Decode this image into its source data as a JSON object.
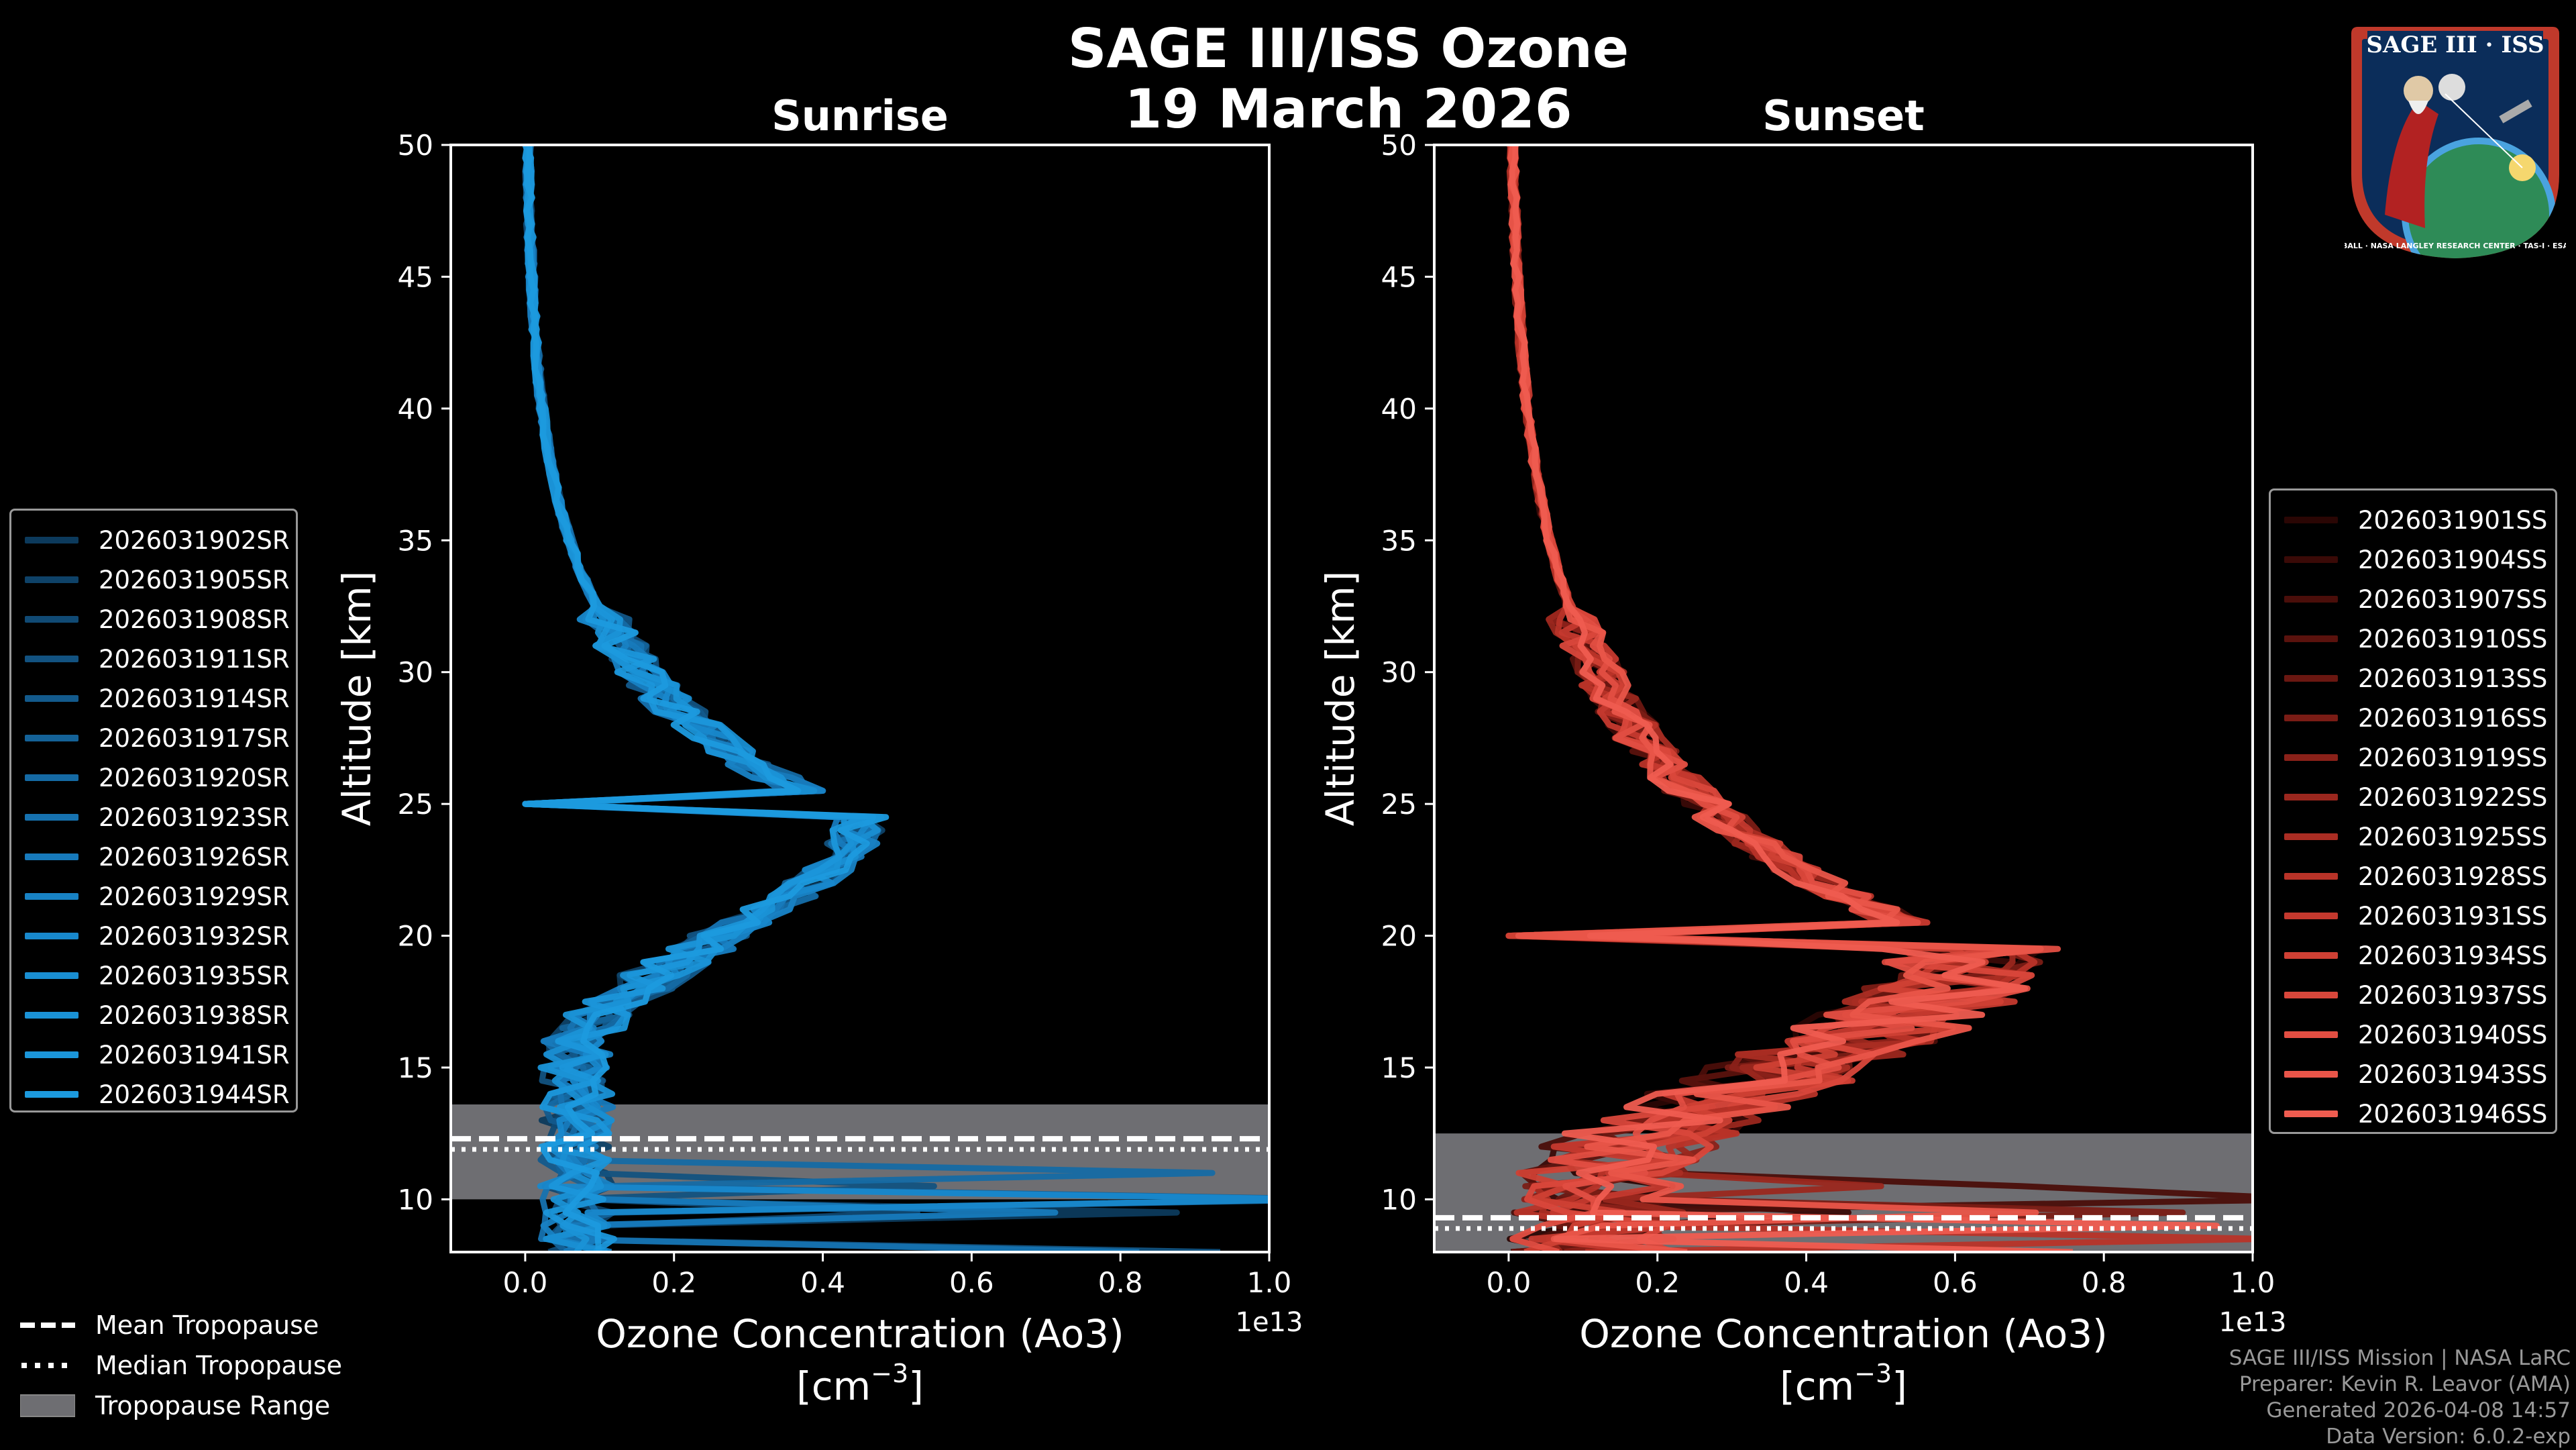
{
  "title_line1": "SAGE III/ISS Ozone",
  "title_line2": "19 March 2026",
  "logo": {
    "text_top": "SAGE III · ISS",
    "text_ring": "BALL · NASA LANGLEY RESEARCH CENTER · TAS-I · ESA"
  },
  "legend_bottom": [
    {
      "label": "Mean Tropopause",
      "style": "dashed"
    },
    {
      "label": "Median Tropopause",
      "style": "dotted"
    },
    {
      "label": "Tropopause Range",
      "style": "patch"
    }
  ],
  "footer": [
    "SAGE III/ISS Mission | NASA LaRC",
    "Preparer: Kevin R. Leavor (AMA)",
    "Generated 2026-04-08 14:57",
    "Data Version: 6.0.2-exp"
  ],
  "chart_data": [
    {
      "type": "line",
      "title": "Sunrise",
      "xlabel": "Ozone Concentration (Ao3)",
      "xunits": "[cm",
      "xunits_exp": "−3",
      "xunits_close": "]",
      "ylabel": "Altitude [km]",
      "offset_label": "1e13",
      "xlim": [
        -0.1,
        1.0
      ],
      "ylim": [
        8,
        50
      ],
      "xticks": [
        "0.0",
        "0.2",
        "0.4",
        "0.6",
        "0.8",
        "1.0"
      ],
      "xtick_values": [
        0.0,
        0.2,
        0.4,
        0.6,
        0.8,
        1.0
      ],
      "yticks": [
        "10",
        "15",
        "20",
        "25",
        "30",
        "35",
        "40",
        "45",
        "50"
      ],
      "ytick_values": [
        10,
        15,
        20,
        25,
        30,
        35,
        40,
        45,
        50
      ],
      "color": "#1e90d8",
      "tropopause": {
        "mean": 12.3,
        "median": 12.2,
        "range": [
          10.0,
          13.6
        ]
      },
      "series": [
        {
          "name": "2026031902SR",
          "color": "#0c3a5c"
        },
        {
          "name": "2026031905SR",
          "color": "#0e4268"
        },
        {
          "name": "2026031908SR",
          "color": "#104a74"
        },
        {
          "name": "2026031911SR",
          "color": "#125280"
        },
        {
          "name": "2026031914SR",
          "color": "#135a8c"
        },
        {
          "name": "2026031917SR",
          "color": "#146298"
        },
        {
          "name": "2026031920SR",
          "color": "#156aa4"
        },
        {
          "name": "2026031923SR",
          "color": "#1672b0"
        },
        {
          "name": "2026031926SR",
          "color": "#177abc"
        },
        {
          "name": "2026031929SR",
          "color": "#1882c4"
        },
        {
          "name": "2026031932SR",
          "color": "#1888cc"
        },
        {
          "name": "2026031935SR",
          "color": "#198ed2"
        },
        {
          "name": "2026031938SR",
          "color": "#1a92d6"
        },
        {
          "name": "2026031941SR",
          "color": "#1b96da"
        },
        {
          "name": "2026031944SR",
          "color": "#1c9ade"
        }
      ]
    },
    {
      "type": "line",
      "title": "Sunset",
      "xlabel": "Ozone Concentration (Ao3)",
      "xunits": "[cm",
      "xunits_exp": "−3",
      "xunits_close": "]",
      "ylabel": "Altitude [km]",
      "offset_label": "1e13",
      "xlim": [
        -0.1,
        1.0
      ],
      "ylim": [
        8,
        50
      ],
      "xticks": [
        "0.0",
        "0.2",
        "0.4",
        "0.6",
        "0.8",
        "1.0"
      ],
      "xtick_values": [
        0.0,
        0.2,
        0.4,
        0.6,
        0.8,
        1.0
      ],
      "yticks": [
        "10",
        "15",
        "20",
        "25",
        "30",
        "35",
        "40",
        "45",
        "50"
      ],
      "ytick_values": [
        10,
        15,
        20,
        25,
        30,
        35,
        40,
        45,
        50
      ],
      "color": "#e8594a",
      "tropopause": {
        "mean": 9.3,
        "median": 9.2,
        "range": [
          8.0,
          12.5
        ]
      },
      "series": [
        {
          "name": "2026031901SS",
          "color": "#2a0604"
        },
        {
          "name": "2026031904SS",
          "color": "#3a0a07"
        },
        {
          "name": "2026031907SS",
          "color": "#4a0e0a"
        },
        {
          "name": "2026031910SS",
          "color": "#5a120d"
        },
        {
          "name": "2026031913SS",
          "color": "#6a1711"
        },
        {
          "name": "2026031916SS",
          "color": "#7a1c15"
        },
        {
          "name": "2026031919SS",
          "color": "#8a2119"
        },
        {
          "name": "2026031922SS",
          "color": "#9a271e"
        },
        {
          "name": "2026031925SS",
          "color": "#aa2d23"
        },
        {
          "name": "2026031928SS",
          "color": "#b83328"
        },
        {
          "name": "2026031931SS",
          "color": "#c4392e"
        },
        {
          "name": "2026031934SS",
          "color": "#cf4034"
        },
        {
          "name": "2026031937SS",
          "color": "#d9473b"
        },
        {
          "name": "2026031940SS",
          "color": "#e24e42"
        },
        {
          "name": "2026031943SS",
          "color": "#e95549"
        },
        {
          "name": "2026031946SS",
          "color": "#ef5c50"
        }
      ]
    }
  ]
}
